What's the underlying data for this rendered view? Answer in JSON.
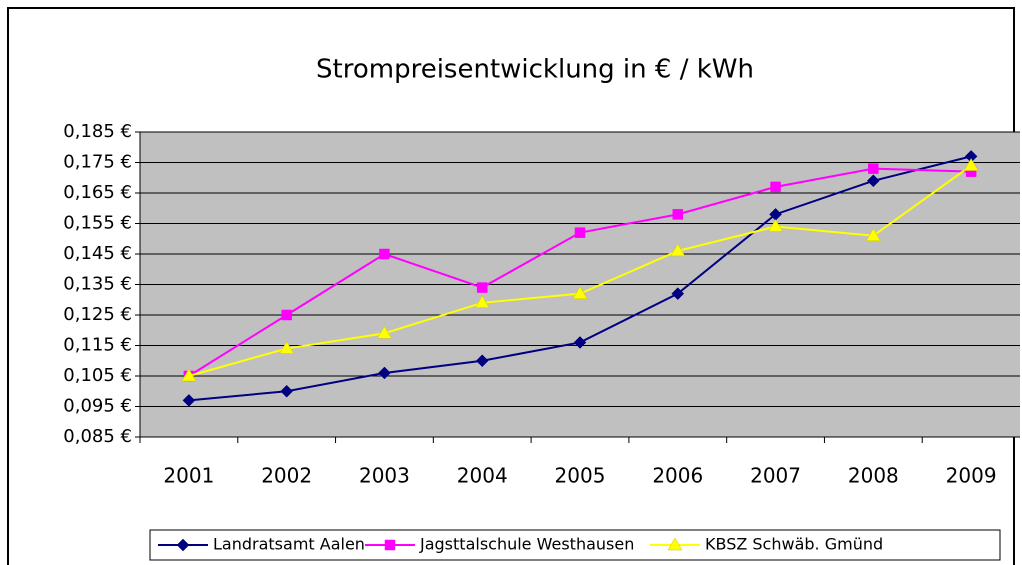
{
  "chart_data": {
    "type": "line",
    "title": "Strompreisentwicklung in € / kWh",
    "categories": [
      "2001",
      "2002",
      "2003",
      "2004",
      "2005",
      "2006",
      "2007",
      "2008",
      "2009"
    ],
    "series": [
      {
        "name": "Landratsamt Aalen",
        "color": "#000080",
        "marker": "diamond",
        "values": [
          0.097,
          0.1,
          0.106,
          0.11,
          0.116,
          0.132,
          0.158,
          0.169,
          0.177
        ]
      },
      {
        "name": "Jagsttalschule Westhausen",
        "color": "#ff00ff",
        "marker": "square",
        "values": [
          0.105,
          0.125,
          0.145,
          0.134,
          0.152,
          0.158,
          0.167,
          0.173,
          0.172
        ]
      },
      {
        "name": "KBSZ Schwäb. Gmünd",
        "color": "#ffff00",
        "marker": "triangle",
        "values": [
          0.105,
          0.114,
          0.119,
          0.129,
          0.132,
          0.146,
          0.154,
          0.151,
          0.174
        ]
      }
    ],
    "ylim": [
      0.085,
      0.185
    ],
    "yticks": [
      {
        "value": 0.085,
        "label": "0,085 €"
      },
      {
        "value": 0.095,
        "label": "0,095 €"
      },
      {
        "value": 0.105,
        "label": "0,105 €"
      },
      {
        "value": 0.115,
        "label": "0,115 €"
      },
      {
        "value": 0.125,
        "label": "0,125 €"
      },
      {
        "value": 0.135,
        "label": "0,135 €"
      },
      {
        "value": 0.145,
        "label": "0,145 €"
      },
      {
        "value": 0.155,
        "label": "0,155 €"
      },
      {
        "value": 0.165,
        "label": "0,165 €"
      },
      {
        "value": 0.175,
        "label": "0,175 €"
      },
      {
        "value": 0.185,
        "label": "0,185 €"
      }
    ],
    "grid": true,
    "legend": "bottom"
  }
}
